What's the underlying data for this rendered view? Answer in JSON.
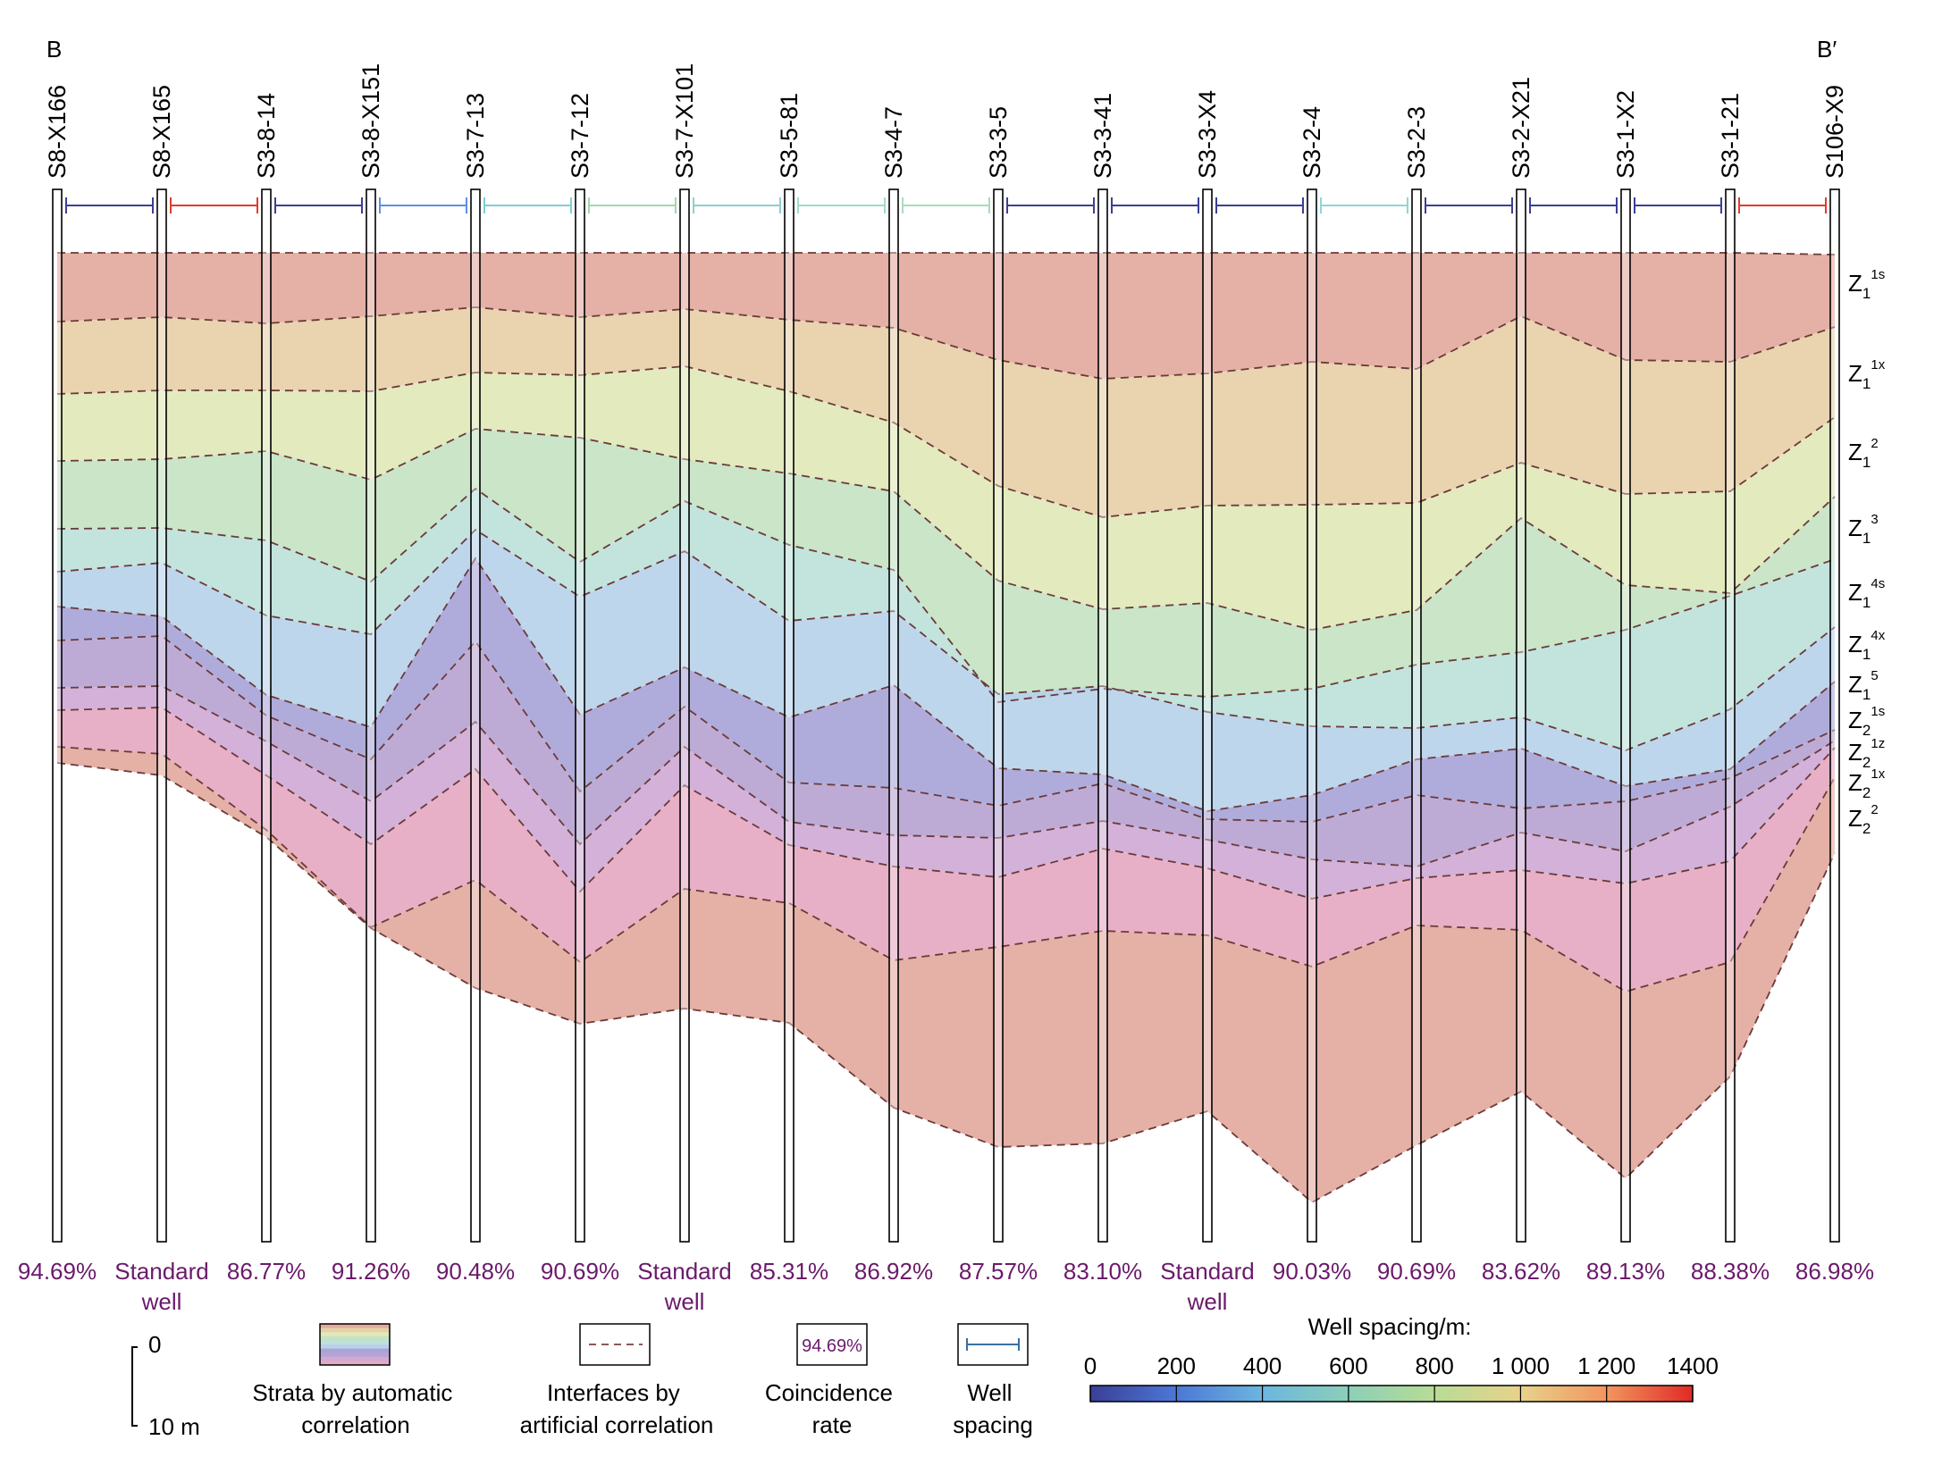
{
  "section": {
    "left_end_label": "B",
    "right_end_label": "B′",
    "standard_well_text": [
      "Standard",
      "well"
    ],
    "wells": [
      {
        "name": "S8-X166",
        "rate": "94.69%"
      },
      {
        "name": "S8-X165",
        "rate": "Standard well",
        "is_standard": true
      },
      {
        "name": "S3-8-14",
        "rate": "86.77%"
      },
      {
        "name": "S3-8-X151",
        "rate": "91.26%"
      },
      {
        "name": "S3-7-13",
        "rate": "90.48%"
      },
      {
        "name": "S3-7-12",
        "rate": "90.69%"
      },
      {
        "name": "S3-7-X101",
        "rate": "Standard well",
        "is_standard": true
      },
      {
        "name": "S3-5-81",
        "rate": "85.31%"
      },
      {
        "name": "S3-4-7",
        "rate": "86.92%"
      },
      {
        "name": "S3-3-5",
        "rate": "87.57%"
      },
      {
        "name": "S3-3-41",
        "rate": "83.10%"
      },
      {
        "name": "S3-3-X4",
        "rate": "Standard well",
        "is_standard": true
      },
      {
        "name": "S3-2-4",
        "rate": "90.03%"
      },
      {
        "name": "S3-2-3",
        "rate": "90.69%"
      },
      {
        "name": "S3-2-X21",
        "rate": "83.62%"
      },
      {
        "name": "S3-1-X2",
        "rate": "89.13%"
      },
      {
        "name": "S3-1-21",
        "rate": "88.38%"
      },
      {
        "name": "S106-X9",
        "rate": "86.98%"
      }
    ],
    "spacing_colors": [
      "#3a3f96",
      "#e23b2e",
      "#3a3f96",
      "#5f8fe0",
      "#7fcfcf",
      "#9fd8b0",
      "#8fcfcf",
      "#a0dcc8",
      "#a8dcc0",
      "#3a3f96",
      "#3a3f96",
      "#3a3f96",
      "#8fd6d6",
      "#3a3f96",
      "#3a3f96",
      "#3a3f96",
      "#e23b2e"
    ],
    "layer_labels": [
      {
        "base": "Z",
        "sub": "1",
        "sup": "1s"
      },
      {
        "base": "Z",
        "sub": "1",
        "sup": "1x"
      },
      {
        "base": "Z",
        "sub": "1",
        "sup": "2"
      },
      {
        "base": "Z",
        "sub": "1",
        "sup": "3"
      },
      {
        "base": "Z",
        "sub": "1",
        "sup": "4s"
      },
      {
        "base": "Z",
        "sub": "1",
        "sup": "4x"
      },
      {
        "base": "Z",
        "sub": "1",
        "sup": "5"
      },
      {
        "base": "Z",
        "sub": "2",
        "sup": "1s"
      },
      {
        "base": "Z",
        "sub": "2",
        "sup": "1z"
      },
      {
        "base": "Z",
        "sub": "2",
        "sup": "1x"
      },
      {
        "base": "Z",
        "sub": "2",
        "sup": "2"
      }
    ],
    "layer_colors": [
      "#e3a99d",
      "#e8cfa8",
      "#e1e8b9",
      "#c5e3c2",
      "#bde2da",
      "#b9d2ea",
      "#a8a5d8",
      "#b7a4d2",
      "#cfaad6",
      "#e5a9c1"
    ],
    "rate_color": "#6b1a6b",
    "dash_color": "#6b3a3a"
  },
  "legend": {
    "scale_top": "0",
    "scale_bottom": "10 m",
    "strata_label": [
      "Strata by automatic",
      "correlation"
    ],
    "interfaces_label": [
      "Interfaces by",
      "artificial correlation"
    ],
    "rate_sample": "94.69%",
    "rate_label": [
      "Coincidence",
      "rate"
    ],
    "spacing_label": [
      "Well",
      "spacing"
    ],
    "colorbar_title": "Well spacing/m:",
    "colorbar_ticks": [
      "0",
      "200",
      "400",
      "600",
      "800",
      "1 000",
      "1 200",
      "1400"
    ],
    "colorbar_stops": [
      "#3a3f96",
      "#4d77d6",
      "#6cb6df",
      "#8ccfb8",
      "#b8dc96",
      "#e7d28a",
      "#f2955e",
      "#e02a26"
    ]
  }
}
